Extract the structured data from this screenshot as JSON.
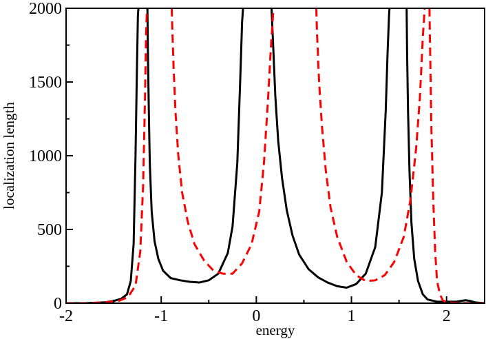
{
  "chart_data": {
    "type": "line",
    "title": "",
    "xlabel": "energy",
    "ylabel": "localization length",
    "xlim": [
      -2.0,
      2.4
    ],
    "ylim": [
      0,
      2000
    ],
    "xticks": [
      -2,
      -1,
      0,
      1,
      2
    ],
    "xtick_labels": [
      "-2",
      "-1",
      "0",
      "1",
      "2"
    ],
    "yticks": [
      0,
      500,
      1000,
      1500,
      2000
    ],
    "ytick_labels": [
      "0",
      "500",
      "1000",
      "1500",
      "2000"
    ],
    "grid": false,
    "legend": "none",
    "series": [
      {
        "name": "solid",
        "color": "#000000",
        "style": "solid",
        "x": [
          -2.0,
          -1.8,
          -1.6,
          -1.5,
          -1.42,
          -1.36,
          -1.32,
          -1.29,
          -1.27,
          -1.255,
          -1.245,
          -1.24,
          null,
          -1.145,
          -1.14,
          -1.13,
          -1.12,
          -1.1,
          -1.07,
          -1.03,
          -0.98,
          -0.9,
          -0.8,
          -0.7,
          -0.6,
          -0.5,
          -0.4,
          -0.3,
          -0.25,
          -0.2,
          -0.17,
          -0.15,
          -0.14,
          null,
          0.16,
          0.18,
          0.2,
          0.23,
          0.27,
          0.32,
          0.38,
          0.45,
          0.55,
          0.65,
          0.75,
          0.85,
          0.95,
          1.05,
          1.15,
          1.25,
          1.32,
          1.36,
          1.38,
          1.395,
          1.4,
          null,
          1.58,
          1.585,
          1.595,
          1.61,
          1.63,
          1.66,
          1.7,
          1.75,
          1.8,
          1.9,
          2.0,
          2.1,
          2.2,
          2.25,
          2.3,
          2.4
        ],
        "y": [
          0,
          0,
          5,
          15,
          30,
          60,
          150,
          400,
          1000,
          1600,
          1950,
          2000,
          null,
          2000,
          1700,
          1300,
          950,
          620,
          420,
          300,
          220,
          170,
          155,
          145,
          140,
          155,
          200,
          340,
          520,
          950,
          1500,
          1900,
          2000,
          null,
          2000,
          1700,
          1400,
          1100,
          850,
          630,
          460,
          330,
          230,
          175,
          140,
          115,
          105,
          130,
          200,
          380,
          750,
          1300,
          1700,
          1950,
          2000,
          null,
          2000,
          1700,
          1300,
          900,
          550,
          300,
          150,
          60,
          25,
          10,
          10,
          10,
          20,
          15,
          5,
          0
        ]
      },
      {
        "name": "dashed",
        "color": "#ff0000",
        "style": "dashed",
        "x": [
          -2.0,
          -1.8,
          -1.6,
          -1.45,
          -1.35,
          -1.27,
          -1.22,
          -1.19,
          -1.17,
          -1.16,
          -1.15,
          null,
          -0.89,
          -0.88,
          -0.87,
          -0.85,
          -0.82,
          -0.78,
          -0.72,
          -0.65,
          -0.55,
          -0.45,
          -0.35,
          -0.25,
          -0.15,
          -0.05,
          0.03,
          0.08,
          0.12,
          0.15,
          0.17,
          0.18,
          null,
          0.63,
          0.64,
          0.66,
          0.69,
          0.73,
          0.78,
          0.85,
          0.95,
          1.05,
          1.15,
          1.25,
          1.35,
          1.45,
          1.55,
          1.62,
          1.68,
          1.72,
          1.75,
          1.77,
          null,
          1.82,
          1.83,
          1.84,
          1.86,
          1.88,
          1.9,
          1.93,
          1.96,
          2.0,
          2.2,
          2.4
        ],
        "y": [
          0,
          0,
          5,
          15,
          40,
          120,
          350,
          800,
          1400,
          1800,
          2000,
          null,
          2000,
          1800,
          1600,
          1300,
          1000,
          750,
          550,
          400,
          290,
          220,
          200,
          200,
          270,
          400,
          620,
          950,
          1350,
          1700,
          1900,
          2000,
          null,
          2000,
          1800,
          1500,
          1200,
          900,
          650,
          450,
          280,
          190,
          150,
          155,
          190,
          280,
          450,
          700,
          1050,
          1400,
          1800,
          2000,
          null,
          2000,
          1600,
          1200,
          700,
          350,
          150,
          60,
          20,
          5,
          0,
          0
        ]
      }
    ]
  }
}
